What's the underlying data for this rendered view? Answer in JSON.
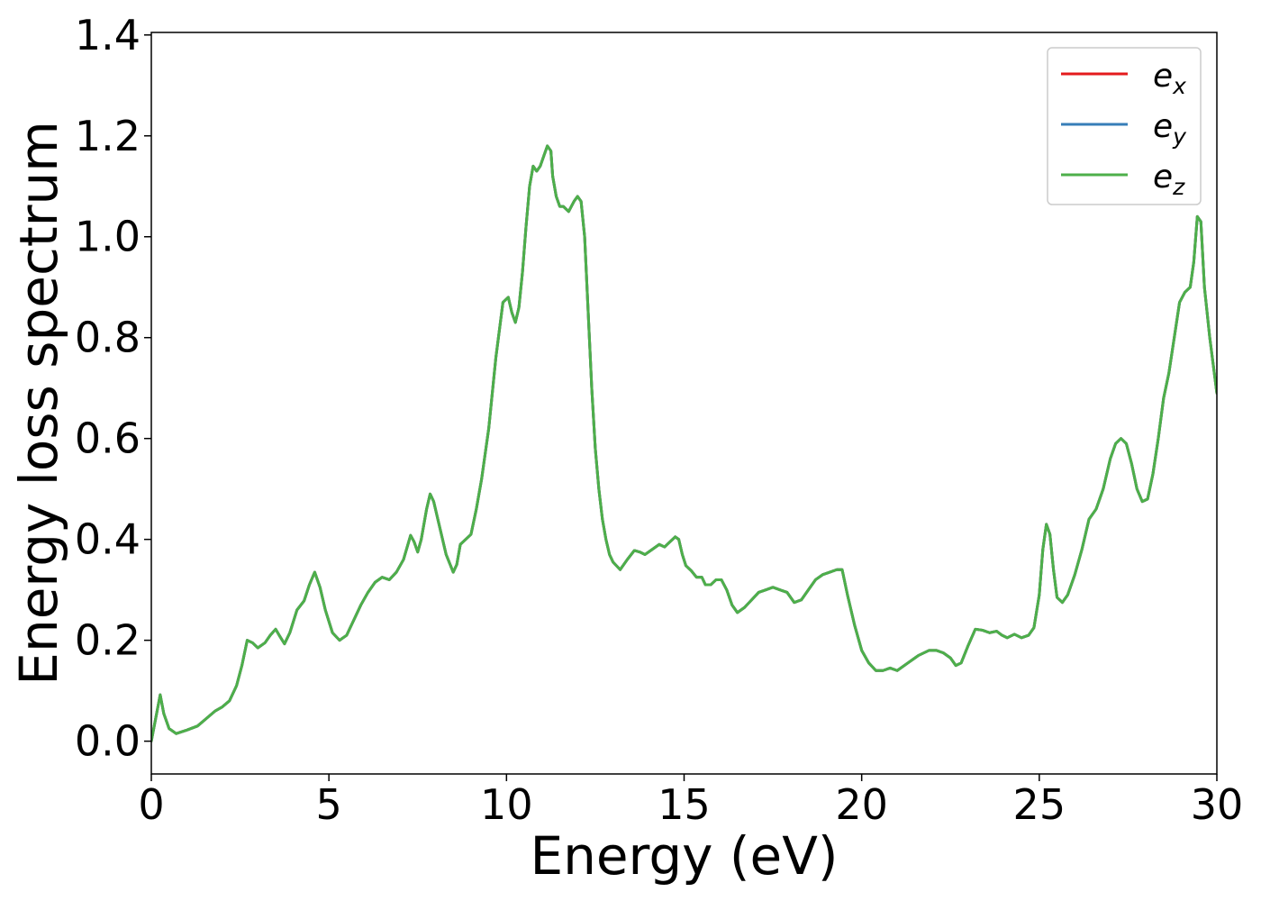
{
  "chart_data": {
    "type": "line",
    "xlabel": "Energy (eV)",
    "ylabel": "Energy loss spectrum",
    "xlim": [
      0,
      30
    ],
    "ylim": [
      -0.065,
      1.405
    ],
    "xticks": [
      0,
      5,
      10,
      15,
      20,
      25,
      30
    ],
    "xtick_labels": [
      "0",
      "5",
      "10",
      "15",
      "20",
      "25",
      "30"
    ],
    "yticks": [
      0.0,
      0.2,
      0.4,
      0.6,
      0.8,
      1.0,
      1.2,
      1.4
    ],
    "ytick_labels": [
      "0.0",
      "0.2",
      "0.4",
      "0.6",
      "0.8",
      "1.0",
      "1.2",
      "1.4"
    ],
    "grid": false,
    "legend_position": "top-right",
    "x": [
      0,
      0.15,
      0.25,
      0.35,
      0.5,
      0.7,
      1.0,
      1.3,
      1.5,
      1.8,
      2.0,
      2.2,
      2.4,
      2.55,
      2.7,
      2.85,
      3.0,
      3.2,
      3.35,
      3.5,
      3.6,
      3.75,
      3.9,
      4.1,
      4.3,
      4.45,
      4.6,
      4.75,
      4.9,
      5.1,
      5.3,
      5.5,
      5.7,
      5.9,
      6.1,
      6.3,
      6.5,
      6.7,
      6.9,
      7.1,
      7.3,
      7.4,
      7.5,
      7.6,
      7.75,
      7.85,
      7.95,
      8.1,
      8.3,
      8.5,
      8.6,
      8.7,
      8.85,
      9.0,
      9.15,
      9.3,
      9.5,
      9.7,
      9.9,
      10.05,
      10.15,
      10.25,
      10.35,
      10.45,
      10.55,
      10.65,
      10.75,
      10.85,
      10.95,
      11.05,
      11.15,
      11.25,
      11.3,
      11.4,
      11.5,
      11.6,
      11.75,
      11.9,
      12.0,
      12.1,
      12.2,
      12.3,
      12.4,
      12.5,
      12.6,
      12.7,
      12.8,
      12.9,
      13.0,
      13.2,
      13.4,
      13.6,
      13.75,
      13.9,
      14.1,
      14.3,
      14.45,
      14.6,
      14.75,
      14.85,
      14.95,
      15.05,
      15.2,
      15.35,
      15.5,
      15.6,
      15.75,
      15.9,
      16.05,
      16.2,
      16.35,
      16.5,
      16.7,
      16.9,
      17.1,
      17.3,
      17.5,
      17.7,
      17.9,
      18.1,
      18.3,
      18.5,
      18.7,
      18.9,
      19.1,
      19.3,
      19.45,
      19.6,
      19.8,
      20.0,
      20.2,
      20.4,
      20.6,
      20.8,
      21.0,
      21.3,
      21.6,
      21.9,
      22.1,
      22.3,
      22.5,
      22.65,
      22.8,
      23.0,
      23.2,
      23.4,
      23.6,
      23.8,
      23.95,
      24.1,
      24.3,
      24.5,
      24.7,
      24.85,
      25.0,
      25.1,
      25.2,
      25.3,
      25.4,
      25.5,
      25.65,
      25.8,
      26.0,
      26.2,
      26.4,
      26.6,
      26.8,
      27.0,
      27.15,
      27.3,
      27.45,
      27.6,
      27.75,
      27.9,
      28.05,
      28.2,
      28.35,
      28.5,
      28.65,
      28.8,
      28.95,
      29.1,
      29.25,
      29.35,
      29.45,
      29.55,
      29.65,
      29.8,
      30.0
    ],
    "series": [
      {
        "name": "e_x",
        "label_base": "e",
        "label_sub": "x",
        "color": "#e41a1c",
        "values": [
          0.0,
          0.055,
          0.092,
          0.055,
          0.025,
          0.015,
          0.022,
          0.03,
          0.042,
          0.06,
          0.068,
          0.08,
          0.11,
          0.15,
          0.2,
          0.195,
          0.185,
          0.195,
          0.21,
          0.222,
          0.21,
          0.193,
          0.215,
          0.26,
          0.278,
          0.31,
          0.335,
          0.305,
          0.26,
          0.215,
          0.2,
          0.21,
          0.24,
          0.27,
          0.295,
          0.315,
          0.325,
          0.32,
          0.335,
          0.36,
          0.408,
          0.395,
          0.375,
          0.4,
          0.46,
          0.49,
          0.475,
          0.43,
          0.37,
          0.335,
          0.35,
          0.39,
          0.4,
          0.41,
          0.46,
          0.52,
          0.62,
          0.76,
          0.87,
          0.88,
          0.85,
          0.83,
          0.86,
          0.93,
          1.02,
          1.1,
          1.14,
          1.13,
          1.14,
          1.16,
          1.18,
          1.17,
          1.12,
          1.08,
          1.06,
          1.06,
          1.05,
          1.07,
          1.08,
          1.07,
          1.0,
          0.85,
          0.7,
          0.58,
          0.5,
          0.44,
          0.4,
          0.37,
          0.355,
          0.34,
          0.36,
          0.378,
          0.375,
          0.37,
          0.38,
          0.39,
          0.385,
          0.395,
          0.405,
          0.4,
          0.37,
          0.348,
          0.338,
          0.325,
          0.325,
          0.31,
          0.31,
          0.32,
          0.32,
          0.3,
          0.27,
          0.255,
          0.265,
          0.28,
          0.295,
          0.3,
          0.305,
          0.3,
          0.295,
          0.275,
          0.28,
          0.3,
          0.32,
          0.33,
          0.335,
          0.34,
          0.34,
          0.29,
          0.23,
          0.18,
          0.155,
          0.14,
          0.14,
          0.145,
          0.14,
          0.155,
          0.17,
          0.18,
          0.18,
          0.175,
          0.165,
          0.15,
          0.155,
          0.19,
          0.222,
          0.22,
          0.215,
          0.218,
          0.21,
          0.205,
          0.212,
          0.205,
          0.21,
          0.225,
          0.29,
          0.38,
          0.43,
          0.41,
          0.34,
          0.285,
          0.275,
          0.29,
          0.33,
          0.38,
          0.44,
          0.46,
          0.5,
          0.56,
          0.59,
          0.6,
          0.59,
          0.55,
          0.5,
          0.475,
          0.48,
          0.53,
          0.6,
          0.68,
          0.73,
          0.8,
          0.87,
          0.89,
          0.9,
          0.95,
          1.04,
          1.03,
          0.9,
          0.8,
          0.69
        ]
      },
      {
        "name": "e_y",
        "label_base": "e",
        "label_sub": "y",
        "color": "#377eb8",
        "values": [
          0.0,
          0.055,
          0.092,
          0.055,
          0.025,
          0.015,
          0.022,
          0.03,
          0.042,
          0.06,
          0.068,
          0.08,
          0.11,
          0.15,
          0.2,
          0.195,
          0.185,
          0.195,
          0.21,
          0.222,
          0.21,
          0.193,
          0.215,
          0.26,
          0.278,
          0.31,
          0.335,
          0.305,
          0.26,
          0.215,
          0.2,
          0.21,
          0.24,
          0.27,
          0.295,
          0.315,
          0.325,
          0.32,
          0.335,
          0.36,
          0.408,
          0.395,
          0.375,
          0.4,
          0.46,
          0.49,
          0.475,
          0.43,
          0.37,
          0.335,
          0.35,
          0.39,
          0.4,
          0.41,
          0.46,
          0.52,
          0.62,
          0.76,
          0.87,
          0.88,
          0.85,
          0.83,
          0.86,
          0.93,
          1.02,
          1.1,
          1.14,
          1.13,
          1.14,
          1.16,
          1.18,
          1.17,
          1.12,
          1.08,
          1.06,
          1.06,
          1.05,
          1.07,
          1.08,
          1.07,
          1.0,
          0.85,
          0.7,
          0.58,
          0.5,
          0.44,
          0.4,
          0.37,
          0.355,
          0.34,
          0.36,
          0.378,
          0.375,
          0.37,
          0.38,
          0.39,
          0.385,
          0.395,
          0.405,
          0.4,
          0.37,
          0.348,
          0.338,
          0.325,
          0.325,
          0.31,
          0.31,
          0.32,
          0.32,
          0.3,
          0.27,
          0.255,
          0.265,
          0.28,
          0.295,
          0.3,
          0.305,
          0.3,
          0.295,
          0.275,
          0.28,
          0.3,
          0.32,
          0.33,
          0.335,
          0.34,
          0.34,
          0.29,
          0.23,
          0.18,
          0.155,
          0.14,
          0.14,
          0.145,
          0.14,
          0.155,
          0.17,
          0.18,
          0.18,
          0.175,
          0.165,
          0.15,
          0.155,
          0.19,
          0.222,
          0.22,
          0.215,
          0.218,
          0.21,
          0.205,
          0.212,
          0.205,
          0.21,
          0.225,
          0.29,
          0.38,
          0.43,
          0.41,
          0.34,
          0.285,
          0.275,
          0.29,
          0.33,
          0.38,
          0.44,
          0.46,
          0.5,
          0.56,
          0.59,
          0.6,
          0.59,
          0.55,
          0.5,
          0.475,
          0.48,
          0.53,
          0.6,
          0.68,
          0.73,
          0.8,
          0.87,
          0.89,
          0.9,
          0.95,
          1.04,
          1.03,
          0.9,
          0.8,
          0.69
        ]
      },
      {
        "name": "e_z",
        "label_base": "e",
        "label_sub": "z",
        "color": "#4daf4a",
        "values": [
          0.0,
          0.055,
          0.092,
          0.055,
          0.025,
          0.015,
          0.022,
          0.03,
          0.042,
          0.06,
          0.068,
          0.08,
          0.11,
          0.15,
          0.2,
          0.195,
          0.185,
          0.195,
          0.21,
          0.222,
          0.21,
          0.193,
          0.215,
          0.26,
          0.278,
          0.31,
          0.335,
          0.305,
          0.26,
          0.215,
          0.2,
          0.21,
          0.24,
          0.27,
          0.295,
          0.315,
          0.325,
          0.32,
          0.335,
          0.36,
          0.408,
          0.395,
          0.375,
          0.4,
          0.46,
          0.49,
          0.475,
          0.43,
          0.37,
          0.335,
          0.35,
          0.39,
          0.4,
          0.41,
          0.46,
          0.52,
          0.62,
          0.76,
          0.87,
          0.88,
          0.85,
          0.83,
          0.86,
          0.93,
          1.02,
          1.1,
          1.14,
          1.13,
          1.14,
          1.16,
          1.18,
          1.17,
          1.12,
          1.08,
          1.06,
          1.06,
          1.05,
          1.07,
          1.08,
          1.07,
          1.0,
          0.85,
          0.7,
          0.58,
          0.5,
          0.44,
          0.4,
          0.37,
          0.355,
          0.34,
          0.36,
          0.378,
          0.375,
          0.37,
          0.38,
          0.39,
          0.385,
          0.395,
          0.405,
          0.4,
          0.37,
          0.348,
          0.338,
          0.325,
          0.325,
          0.31,
          0.31,
          0.32,
          0.32,
          0.3,
          0.27,
          0.255,
          0.265,
          0.28,
          0.295,
          0.3,
          0.305,
          0.3,
          0.295,
          0.275,
          0.28,
          0.3,
          0.32,
          0.33,
          0.335,
          0.34,
          0.34,
          0.29,
          0.23,
          0.18,
          0.155,
          0.14,
          0.14,
          0.145,
          0.14,
          0.155,
          0.17,
          0.18,
          0.18,
          0.175,
          0.165,
          0.15,
          0.155,
          0.19,
          0.222,
          0.22,
          0.215,
          0.218,
          0.21,
          0.205,
          0.212,
          0.205,
          0.21,
          0.225,
          0.29,
          0.38,
          0.43,
          0.41,
          0.34,
          0.285,
          0.275,
          0.29,
          0.33,
          0.38,
          0.44,
          0.46,
          0.5,
          0.56,
          0.59,
          0.6,
          0.59,
          0.55,
          0.5,
          0.475,
          0.48,
          0.53,
          0.6,
          0.68,
          0.73,
          0.8,
          0.87,
          0.89,
          0.9,
          0.95,
          1.04,
          1.03,
          0.9,
          0.8,
          0.69
        ]
      }
    ]
  }
}
